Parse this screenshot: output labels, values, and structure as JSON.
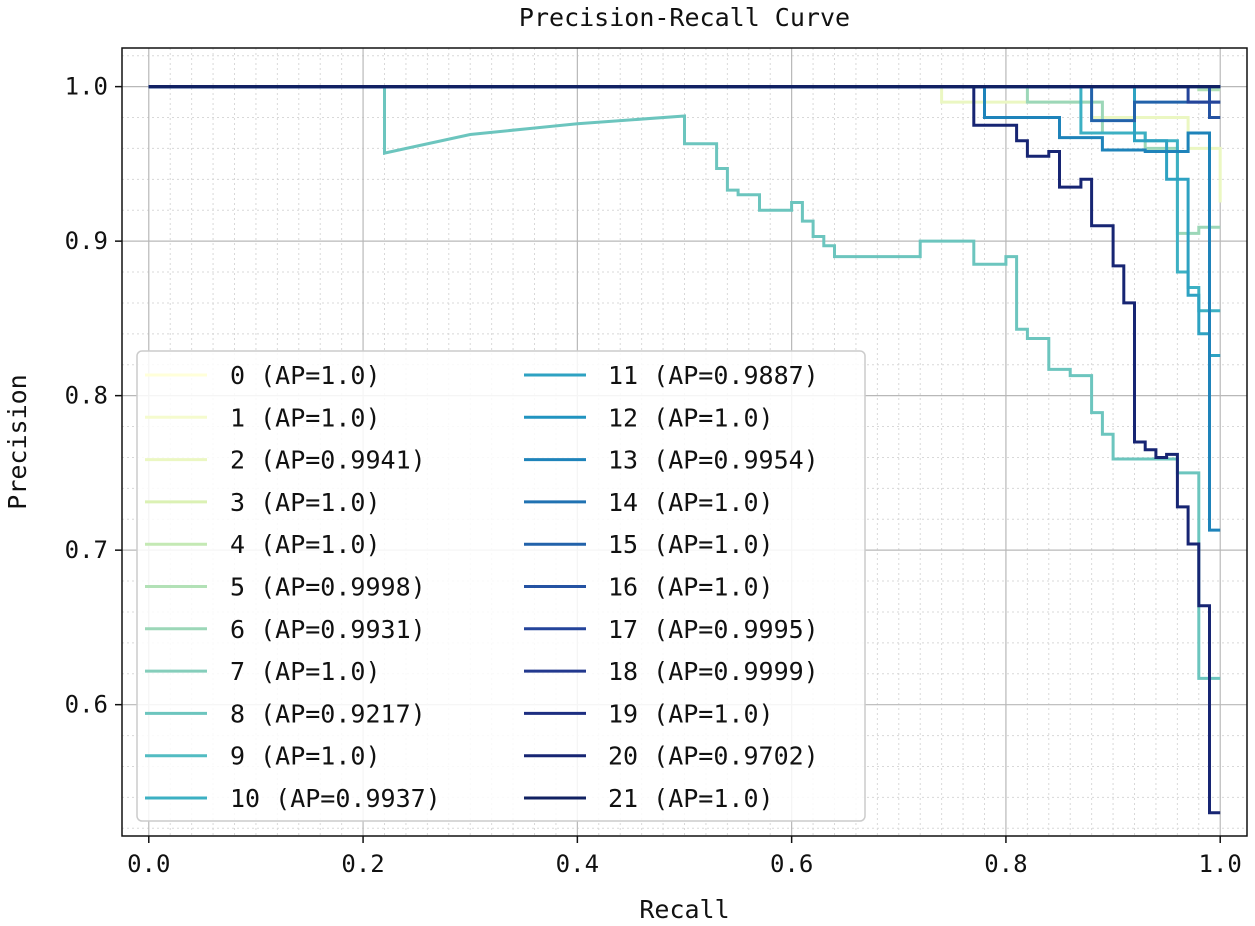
{
  "chart_data": {
    "type": "line",
    "title": "Precision-Recall Curve",
    "xlabel": "Recall",
    "ylabel": "Precision",
    "xlim": [
      -0.025,
      1.025
    ],
    "ylim": [
      0.515,
      1.025
    ],
    "grid": true,
    "minor_grid": true,
    "xticks": [
      0.0,
      0.2,
      0.4,
      0.6,
      0.8,
      1.0
    ],
    "xtick_labels": [
      "0.0",
      "0.2",
      "0.4",
      "0.6",
      "0.8",
      "1.0"
    ],
    "yticks": [
      0.6,
      0.7,
      0.8,
      0.9,
      1.0
    ],
    "ytick_labels": [
      "0.6",
      "0.7",
      "0.8",
      "0.9",
      "1.0"
    ],
    "legend_placement": "lower-left",
    "legend_columns": 2,
    "series": [
      {
        "name": "0 (AP=1.0)",
        "color": "#ffffd9",
        "x": [
          0,
          1.0
        ],
        "y": [
          1.0,
          1.0
        ]
      },
      {
        "name": "1 (AP=1.0)",
        "color": "#f5fbce",
        "x": [
          0,
          1.0
        ],
        "y": [
          1.0,
          1.0
        ]
      },
      {
        "name": "2 (AP=0.9941)",
        "color": "#ebf7c2",
        "x": [
          0,
          0.74,
          0.74,
          0.88,
          0.88,
          0.97,
          0.97,
          1.0,
          1.0
        ],
        "y": [
          1.0,
          1.0,
          0.99,
          0.99,
          0.98,
          0.98,
          0.96,
          0.96,
          0.925
        ]
      },
      {
        "name": "3 (AP=1.0)",
        "color": "#dbf1b4",
        "x": [
          0,
          1.0
        ],
        "y": [
          1.0,
          1.0
        ]
      },
      {
        "name": "4 (AP=1.0)",
        "color": "#c4e9b4",
        "x": [
          0,
          1.0
        ],
        "y": [
          1.0,
          1.0
        ]
      },
      {
        "name": "5 (AP=0.9998)",
        "color": "#b2e1b6",
        "x": [
          0,
          0.98,
          0.98,
          1.0
        ],
        "y": [
          1.0,
          1.0,
          0.998,
          0.998
        ]
      },
      {
        "name": "6 (AP=0.9931)",
        "color": "#9cd7b8",
        "x": [
          0,
          0.82,
          0.82,
          0.89,
          0.89,
          0.93,
          0.93,
          0.96,
          0.96,
          0.98,
          0.98,
          1.0
        ],
        "y": [
          1.0,
          1.0,
          0.99,
          0.99,
          0.97,
          0.97,
          0.96,
          0.96,
          0.905,
          0.905,
          0.909,
          0.909
        ]
      },
      {
        "name": "7 (AP=1.0)",
        "color": "#85cebb",
        "x": [
          0,
          1.0
        ],
        "y": [
          1.0,
          1.0
        ]
      },
      {
        "name": "8 (AP=0.9217)",
        "color": "#6cc5be",
        "x": [
          0,
          0.22,
          0.22,
          0.3,
          0.4,
          0.5,
          0.5,
          0.53,
          0.53,
          0.54,
          0.54,
          0.55,
          0.55,
          0.57,
          0.57,
          0.6,
          0.6,
          0.61,
          0.61,
          0.62,
          0.62,
          0.63,
          0.63,
          0.64,
          0.64,
          0.72,
          0.72,
          0.77,
          0.77,
          0.8,
          0.8,
          0.81,
          0.81,
          0.82,
          0.82,
          0.84,
          0.84,
          0.86,
          0.86,
          0.88,
          0.88,
          0.89,
          0.89,
          0.9,
          0.9,
          0.96,
          0.96,
          0.98,
          0.98,
          1.0
        ],
        "y": [
          1.0,
          1.0,
          0.957,
          0.969,
          0.976,
          0.981,
          0.963,
          0.963,
          0.947,
          0.947,
          0.933,
          0.933,
          0.93,
          0.93,
          0.92,
          0.92,
          0.925,
          0.925,
          0.913,
          0.913,
          0.903,
          0.903,
          0.897,
          0.897,
          0.89,
          0.89,
          0.9,
          0.9,
          0.885,
          0.885,
          0.89,
          0.89,
          0.843,
          0.843,
          0.837,
          0.837,
          0.817,
          0.817,
          0.813,
          0.813,
          0.789,
          0.789,
          0.775,
          0.775,
          0.759,
          0.759,
          0.75,
          0.75,
          0.617,
          0.617
        ]
      },
      {
        "name": "9 (AP=1.0)",
        "color": "#52bcc2",
        "x": [
          0,
          1.0
        ],
        "y": [
          1.0,
          1.0
        ]
      },
      {
        "name": "10 (AP=0.9937)",
        "color": "#3cb0c3",
        "x": [
          0,
          0.87,
          0.87,
          0.93,
          0.93,
          0.96,
          0.96,
          0.97,
          0.97,
          0.98,
          0.98,
          1.0
        ],
        "y": [
          1.0,
          1.0,
          0.97,
          0.97,
          0.965,
          0.965,
          0.88,
          0.88,
          0.87,
          0.87,
          0.855,
          0.855
        ]
      },
      {
        "name": "11 (AP=0.9887)",
        "color": "#2ea2c2",
        "x": [
          0,
          0.92,
          0.92,
          0.95,
          0.95,
          0.97,
          0.97,
          0.98,
          0.98,
          0.99,
          0.99,
          1.0
        ],
        "y": [
          1.0,
          1.0,
          0.965,
          0.965,
          0.94,
          0.94,
          0.865,
          0.865,
          0.84,
          0.84,
          0.826,
          0.826
        ]
      },
      {
        "name": "12 (AP=1.0)",
        "color": "#2194c0",
        "x": [
          0,
          1.0
        ],
        "y": [
          1.0,
          1.0
        ]
      },
      {
        "name": "13 (AP=0.9954)",
        "color": "#1e83ba",
        "x": [
          0,
          0.78,
          0.78,
          0.85,
          0.85,
          0.89,
          0.89,
          0.93,
          0.93,
          0.97,
          0.97,
          0.99,
          0.99,
          1.0
        ],
        "y": [
          1.0,
          1.0,
          0.98,
          0.98,
          0.967,
          0.967,
          0.959,
          0.959,
          0.958,
          0.958,
          0.97,
          0.97,
          0.713,
          0.713
        ]
      },
      {
        "name": "14 (AP=1.0)",
        "color": "#2072b2",
        "x": [
          0,
          1.0
        ],
        "y": [
          1.0,
          1.0
        ]
      },
      {
        "name": "15 (AP=1.0)",
        "color": "#2262aa",
        "x": [
          0,
          0.88,
          0.88,
          0.92,
          0.92,
          0.97,
          0.97,
          1.0
        ],
        "y": [
          1.0,
          1.0,
          0.978,
          0.978,
          0.99,
          0.99,
          0.99,
          0.99
        ]
      },
      {
        "name": "16 (AP=1.0)",
        "color": "#2452a2",
        "x": [
          0,
          0.99,
          0.99,
          1.0
        ],
        "y": [
          1.0,
          1.0,
          0.98,
          0.98
        ]
      },
      {
        "name": "17 (AP=0.9995)",
        "color": "#24449a",
        "x": [
          0,
          0.97,
          0.97,
          1.0
        ],
        "y": [
          1.0,
          1.0,
          0.99,
          0.99
        ]
      },
      {
        "name": "18 (AP=0.9999)",
        "color": "#22388e",
        "x": [
          0,
          1.0
        ],
        "y": [
          1.0,
          1.0
        ]
      },
      {
        "name": "19 (AP=1.0)",
        "color": "#1d2e81",
        "x": [
          0,
          1.0
        ],
        "y": [
          1.0,
          1.0
        ]
      },
      {
        "name": "20 (AP=0.9702)",
        "color": "#172573",
        "x": [
          0,
          0.77,
          0.77,
          0.81,
          0.81,
          0.82,
          0.82,
          0.84,
          0.84,
          0.85,
          0.85,
          0.87,
          0.87,
          0.88,
          0.88,
          0.9,
          0.9,
          0.91,
          0.91,
          0.92,
          0.92,
          0.93,
          0.93,
          0.94,
          0.94,
          0.95,
          0.95,
          0.96,
          0.96,
          0.97,
          0.97,
          0.98,
          0.98,
          0.99,
          0.99,
          1.0
        ],
        "y": [
          1.0,
          1.0,
          0.975,
          0.975,
          0.965,
          0.965,
          0.955,
          0.955,
          0.958,
          0.958,
          0.935,
          0.935,
          0.94,
          0.94,
          0.91,
          0.91,
          0.884,
          0.884,
          0.86,
          0.86,
          0.77,
          0.77,
          0.765,
          0.765,
          0.76,
          0.76,
          0.762,
          0.762,
          0.728,
          0.728,
          0.704,
          0.704,
          0.664,
          0.664,
          0.53,
          0.53
        ]
      },
      {
        "name": "21 (AP=1.0)",
        "color": "#112162",
        "x": [
          0,
          1.0
        ],
        "y": [
          1.0,
          1.0
        ]
      }
    ]
  }
}
